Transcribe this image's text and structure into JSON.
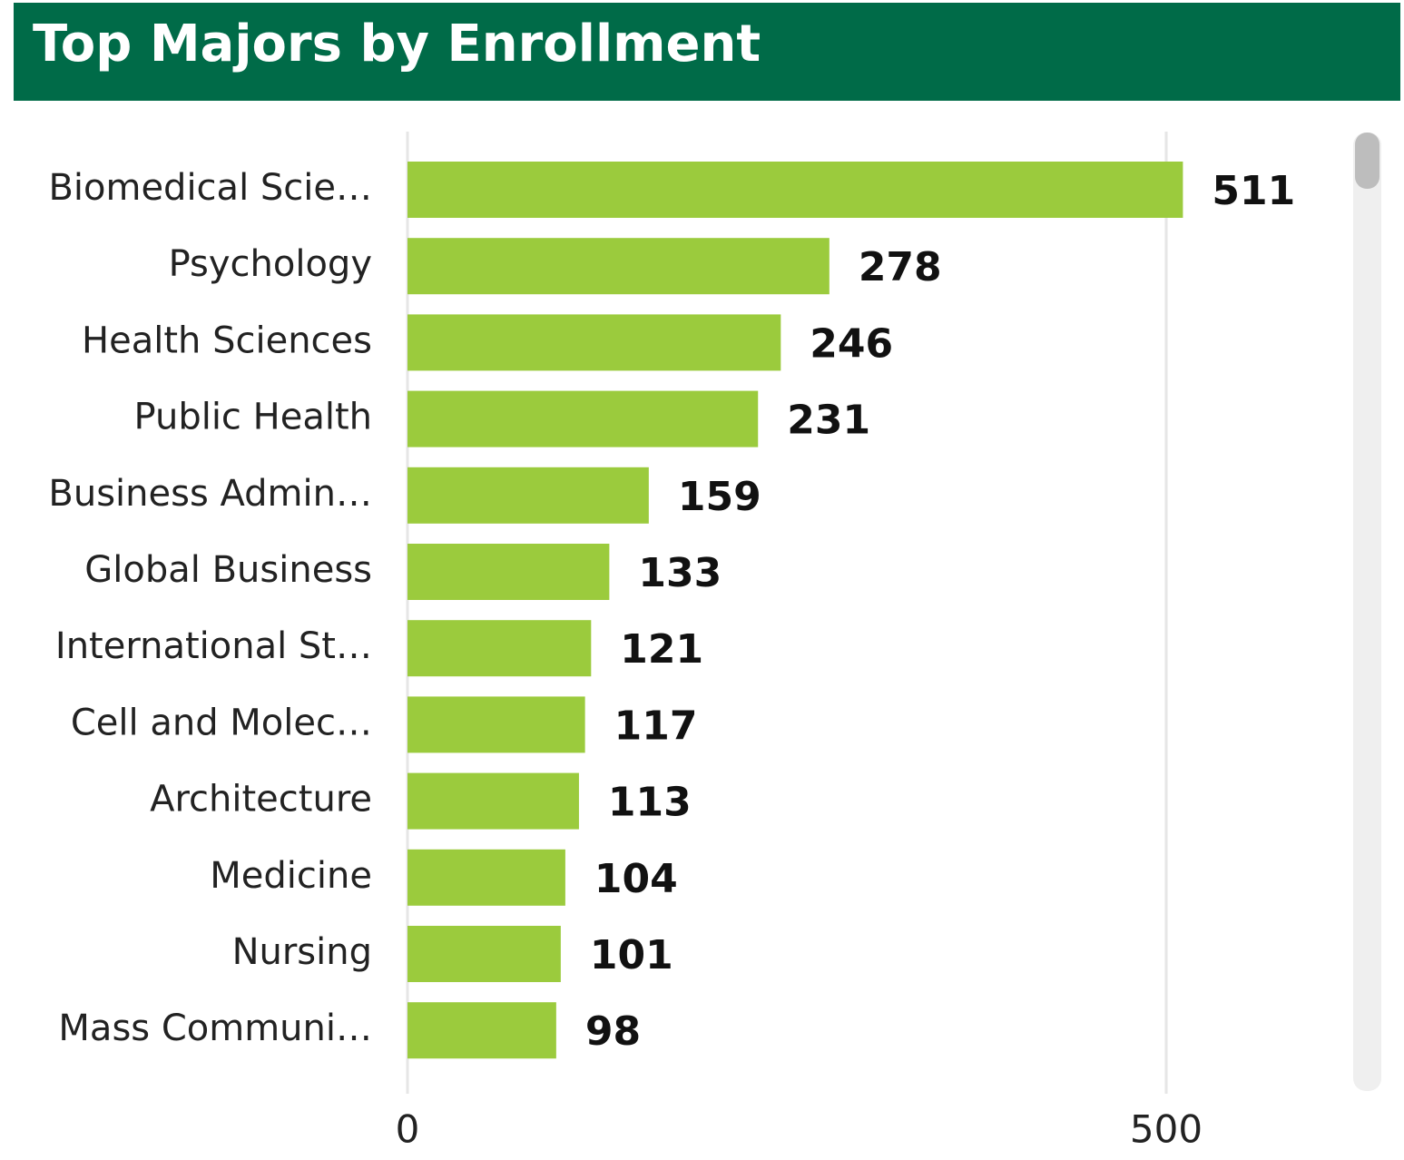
{
  "chart_data": {
    "type": "bar",
    "orientation": "horizontal",
    "title": "Top Majors by Enrollment",
    "categories": [
      "Biomedical Scie…",
      "Psychology",
      "Health Sciences",
      "Public Health",
      "Business Admin…",
      "Global Business",
      "International St…",
      "Cell and Molec…",
      "Architecture",
      "Medicine",
      "Nursing",
      "Mass Communi…"
    ],
    "values": [
      511,
      278,
      246,
      231,
      159,
      133,
      121,
      117,
      113,
      104,
      101,
      98
    ],
    "color": "#9bcb3d",
    "header_color": "#006b48",
    "xlim": [
      0,
      600
    ],
    "xticks": [
      0,
      500
    ],
    "grid": true
  }
}
